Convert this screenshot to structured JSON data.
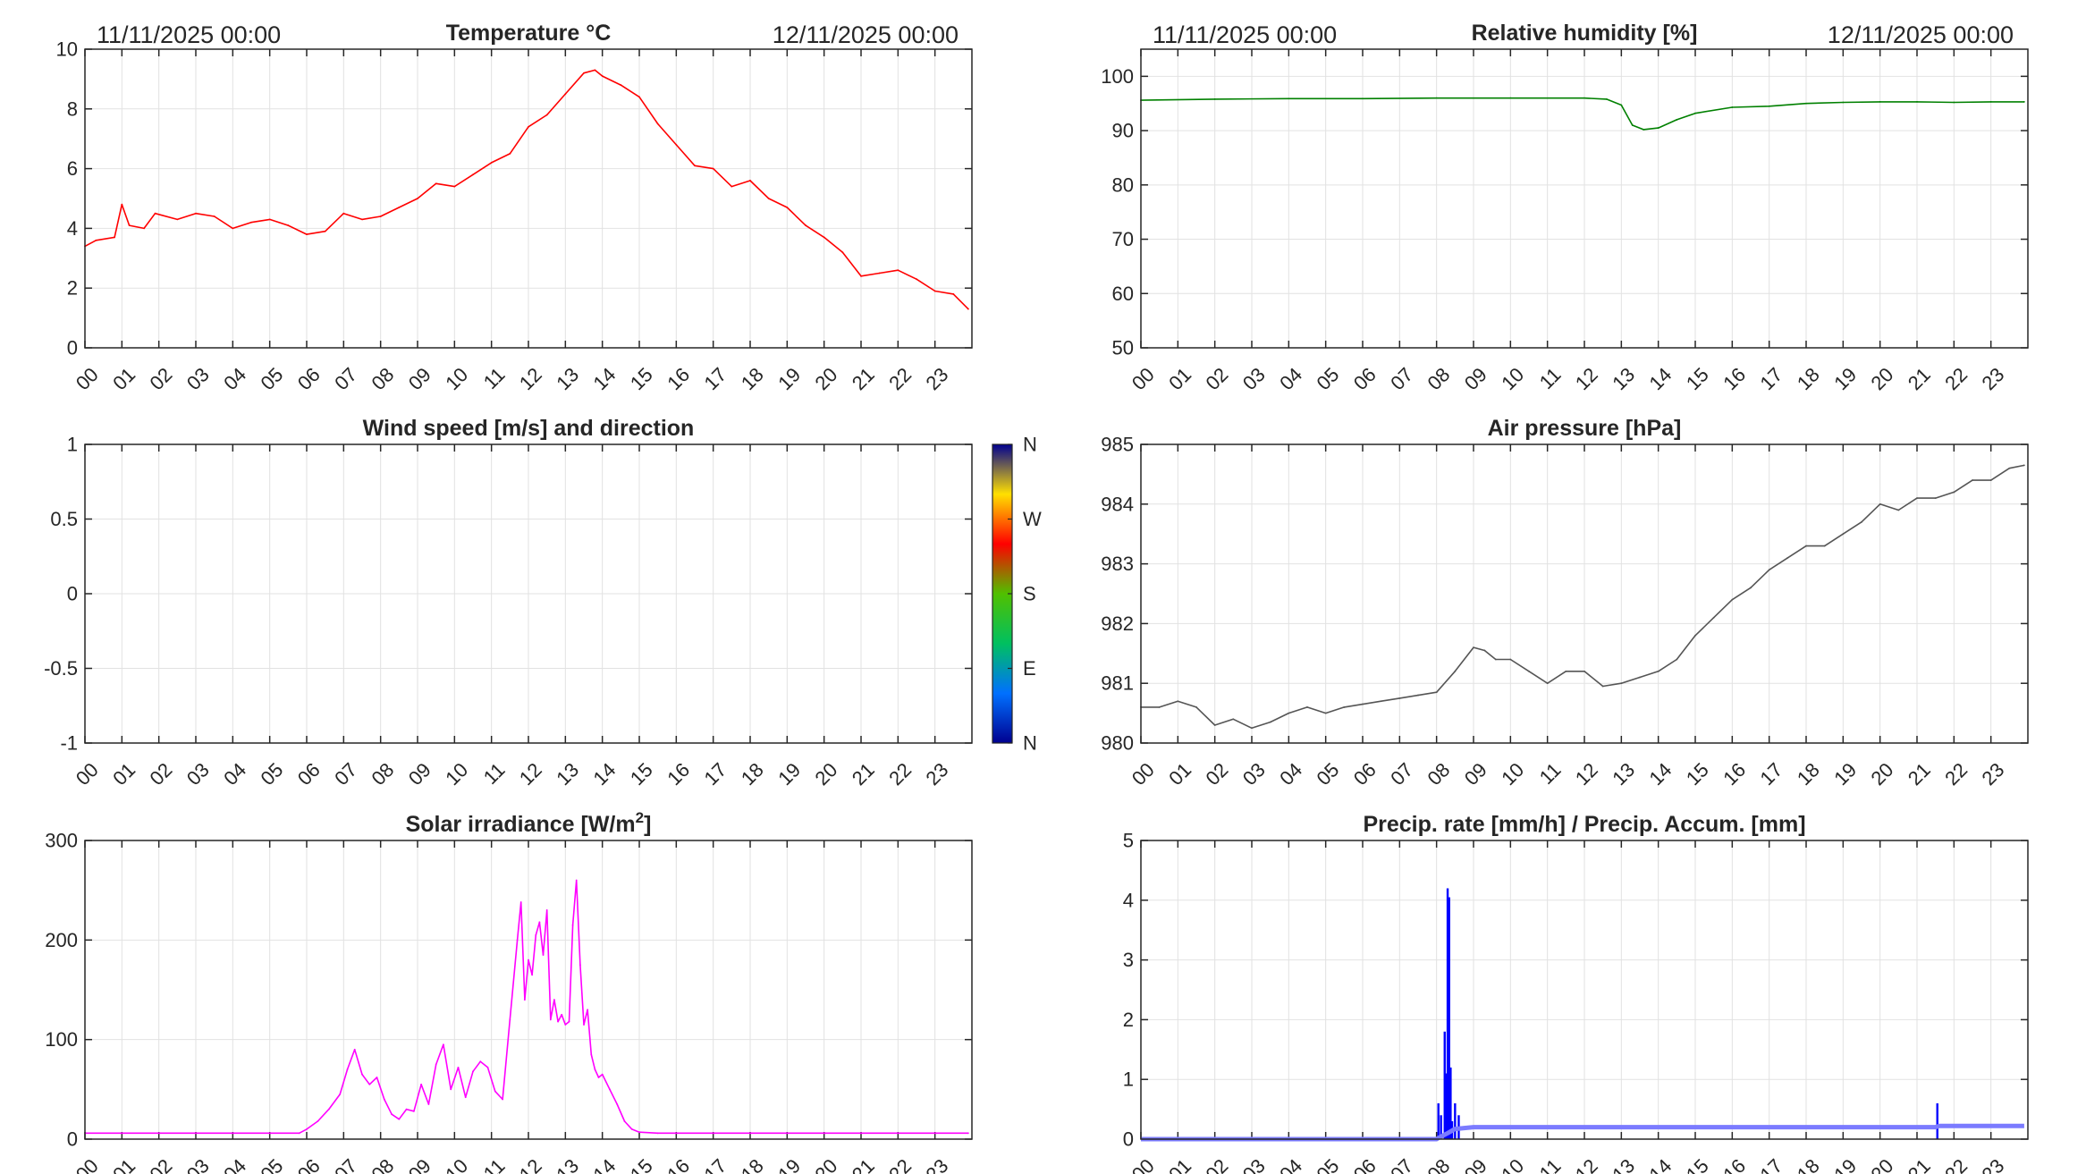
{
  "header": {
    "start_left": "11/11/2025 00:00",
    "end_left": "12/11/2025 00:00",
    "start_right": "11/11/2025 00:00",
    "end_right": "12/11/2025 00:00"
  },
  "hour_labels": [
    "00",
    "01",
    "02",
    "03",
    "04",
    "05",
    "06",
    "07",
    "08",
    "09",
    "10",
    "11",
    "12",
    "13",
    "14",
    "15",
    "16",
    "17",
    "18",
    "19",
    "20",
    "21",
    "22",
    "23"
  ],
  "colors": {
    "temperature": "#ff0000",
    "humidity": "#008000",
    "pressure": "#555555",
    "solar": "#ff00ff",
    "precip_rate": "#0000ff",
    "precip_accum": "#7b7bff",
    "grid": "#e2e2e2",
    "axis": "#262626"
  },
  "wind_colorbar": {
    "labels": [
      "N",
      "W",
      "S",
      "E",
      "N"
    ],
    "stops": [
      "#000090",
      "#0070ff",
      "#00c060",
      "#50c000",
      "#ff0000",
      "#ffe000",
      "#000090"
    ]
  },
  "chart_data": [
    {
      "id": "temperature",
      "type": "line",
      "title": "Temperature °C",
      "xlim": [
        0,
        24
      ],
      "ylim": [
        0,
        10
      ],
      "yticks": [
        0,
        2,
        4,
        6,
        8,
        10
      ],
      "ytick_labels": [
        "0",
        "2",
        "4",
        "6",
        "8",
        "10"
      ],
      "grid": true,
      "series": [
        {
          "x": [
            0,
            0.3,
            0.8,
            1.0,
            1.2,
            1.6,
            1.9,
            2.5,
            3.0,
            3.5,
            4.0,
            4.5,
            5.0,
            5.5,
            6.0,
            6.5,
            7.0,
            7.5,
            8.0,
            8.5,
            9.0,
            9.5,
            10.0,
            10.5,
            11.0,
            11.5,
            12.0,
            12.5,
            13.0,
            13.5,
            13.8,
            14.0,
            14.5,
            15.0,
            15.5,
            16.0,
            16.5,
            17.0,
            17.5,
            18.0,
            18.5,
            19.0,
            19.5,
            20.0,
            20.5,
            21.0,
            21.5,
            22.0,
            22.5,
            23.0,
            23.5,
            23.9
          ],
          "y": [
            3.4,
            3.6,
            3.7,
            4.8,
            4.1,
            4.0,
            4.5,
            4.3,
            4.5,
            4.4,
            4.0,
            4.2,
            4.3,
            4.1,
            3.8,
            3.9,
            4.5,
            4.3,
            4.4,
            4.7,
            5.0,
            5.5,
            5.4,
            5.8,
            6.2,
            6.5,
            7.4,
            7.8,
            8.5,
            9.2,
            9.3,
            9.1,
            8.8,
            8.4,
            7.5,
            6.8,
            6.1,
            6.0,
            5.4,
            5.6,
            5.0,
            4.7,
            4.1,
            3.7,
            3.2,
            2.4,
            2.5,
            2.6,
            2.3,
            1.9,
            1.8,
            1.3
          ]
        }
      ]
    },
    {
      "id": "humidity",
      "type": "line",
      "title": "Relative humidity [%]",
      "xlim": [
        0,
        24
      ],
      "ylim": [
        50,
        105
      ],
      "yticks": [
        50,
        60,
        70,
        80,
        90,
        100
      ],
      "ytick_labels": [
        "50",
        "60",
        "70",
        "80",
        "90",
        "100"
      ],
      "grid": true,
      "series": [
        {
          "x": [
            0,
            2.0,
            4.0,
            6.0,
            8.0,
            10.0,
            12.0,
            12.6,
            13.0,
            13.3,
            13.6,
            14.0,
            14.5,
            15.0,
            16.0,
            17.0,
            18.0,
            19.0,
            20.0,
            21.0,
            22.0,
            23.0,
            23.9
          ],
          "y": [
            95.6,
            95.8,
            95.9,
            95.9,
            96.0,
            96.0,
            96.0,
            95.8,
            94.7,
            91.0,
            90.2,
            90.5,
            92.0,
            93.2,
            94.3,
            94.5,
            95.0,
            95.2,
            95.3,
            95.3,
            95.2,
            95.3,
            95.3
          ]
        }
      ]
    },
    {
      "id": "wind",
      "type": "scatter",
      "title": "Wind speed [m/s] and direction",
      "xlim": [
        0,
        24
      ],
      "ylim": [
        -1,
        1
      ],
      "yticks": [
        -1,
        -0.5,
        0,
        0.5,
        1
      ],
      "ytick_labels": [
        "-1",
        "-0.5",
        "0",
        "0.5",
        "1"
      ],
      "grid": true,
      "series": []
    },
    {
      "id": "pressure",
      "type": "line",
      "title": "Air pressure [hPa]",
      "xlim": [
        0,
        24
      ],
      "ylim": [
        980,
        985
      ],
      "yticks": [
        980,
        981,
        982,
        983,
        984,
        985
      ],
      "ytick_labels": [
        "980",
        "981",
        "982",
        "983",
        "984",
        "985"
      ],
      "grid": true,
      "series": [
        {
          "x": [
            0,
            0.5,
            1.0,
            1.5,
            2.0,
            2.5,
            3.0,
            3.5,
            4.0,
            4.5,
            5.0,
            5.5,
            6.0,
            6.5,
            7.0,
            7.5,
            8.0,
            8.5,
            9.0,
            9.3,
            9.6,
            10.0,
            10.5,
            11.0,
            11.5,
            12.0,
            12.5,
            13.0,
            13.5,
            14.0,
            14.5,
            15.0,
            15.5,
            16.0,
            16.5,
            17.0,
            17.5,
            18.0,
            18.5,
            19.0,
            19.5,
            20.0,
            20.5,
            21.0,
            21.5,
            22.0,
            22.5,
            23.0,
            23.5,
            23.9
          ],
          "y": [
            980.6,
            980.6,
            980.7,
            980.6,
            980.3,
            980.4,
            980.25,
            980.35,
            980.5,
            980.6,
            980.5,
            980.6,
            980.65,
            980.7,
            980.75,
            980.8,
            980.85,
            981.2,
            981.6,
            981.55,
            981.4,
            981.4,
            981.2,
            981.0,
            981.2,
            981.2,
            980.95,
            981.0,
            981.1,
            981.2,
            981.4,
            981.8,
            982.1,
            982.4,
            982.6,
            982.9,
            983.1,
            983.3,
            983.3,
            983.5,
            983.7,
            984.0,
            983.9,
            984.1,
            984.1,
            984.2,
            984.4,
            984.4,
            984.6,
            984.65
          ]
        }
      ]
    },
    {
      "id": "solar",
      "type": "line",
      "title": "Solar irradiance [W/m²]",
      "title_main": "Solar irradiance [W/m",
      "title_sup": "2",
      "title_end": "]",
      "xlim": [
        0,
        24
      ],
      "ylim": [
        0,
        300
      ],
      "yticks": [
        0,
        100,
        200,
        300
      ],
      "ytick_labels": [
        "0",
        "100",
        "200",
        "300"
      ],
      "grid": true,
      "series": [
        {
          "x": [
            0,
            1.0,
            2.0,
            3.0,
            4.0,
            5.0,
            5.8,
            6.0,
            6.3,
            6.6,
            6.9,
            7.1,
            7.3,
            7.5,
            7.7,
            7.9,
            8.1,
            8.3,
            8.5,
            8.7,
            8.9,
            9.1,
            9.3,
            9.5,
            9.7,
            9.9,
            10.1,
            10.3,
            10.5,
            10.7,
            10.9,
            11.1,
            11.3,
            11.5,
            11.7,
            11.8,
            11.9,
            12.0,
            12.1,
            12.2,
            12.3,
            12.4,
            12.5,
            12.6,
            12.7,
            12.8,
            12.9,
            13.0,
            13.1,
            13.2,
            13.3,
            13.4,
            13.5,
            13.6,
            13.7,
            13.8,
            13.9,
            14.0,
            14.2,
            14.4,
            14.6,
            14.8,
            15.0,
            15.5,
            16.0,
            17.0,
            18.0,
            19.0,
            20.0,
            21.0,
            22.0,
            23.0,
            23.9
          ],
          "y": [
            6,
            6,
            6,
            6,
            6,
            6,
            6,
            10,
            18,
            30,
            45,
            70,
            90,
            65,
            55,
            62,
            40,
            25,
            20,
            30,
            28,
            55,
            35,
            75,
            95,
            50,
            72,
            42,
            68,
            78,
            72,
            48,
            40,
            120,
            200,
            238,
            140,
            180,
            165,
            205,
            218,
            185,
            230,
            120,
            140,
            118,
            125,
            115,
            118,
            215,
            260,
            175,
            115,
            130,
            85,
            70,
            62,
            65,
            50,
            35,
            18,
            10,
            7,
            6,
            6,
            6,
            6,
            6,
            6,
            6,
            6,
            6,
            6
          ]
        }
      ]
    },
    {
      "id": "precip",
      "type": "bar",
      "title": "Precip. rate [mm/h] / Precip. Accum. [mm]",
      "xlim": [
        0,
        24
      ],
      "ylim": [
        0,
        5
      ],
      "yticks": [
        0,
        1,
        2,
        3,
        4,
        5
      ],
      "ytick_labels": [
        "0",
        "1",
        "2",
        "3",
        "4",
        "5"
      ],
      "grid": true,
      "series": [
        {
          "name": "rate",
          "x": [
            8.05,
            8.12,
            8.22,
            8.27,
            8.3,
            8.34,
            8.38,
            8.42,
            8.5,
            8.6,
            21.55
          ],
          "values": [
            0.6,
            0.4,
            1.8,
            1.1,
            4.2,
            4.05,
            1.2,
            0.3,
            0.6,
            0.4,
            0.6
          ]
        },
        {
          "name": "accumulation",
          "x": [
            0,
            8.0,
            8.05,
            8.3,
            8.5,
            9.0,
            21.5,
            21.6,
            23.9
          ],
          "y": [
            0,
            0,
            0.02,
            0.1,
            0.17,
            0.2,
            0.2,
            0.22,
            0.22
          ]
        }
      ]
    }
  ]
}
